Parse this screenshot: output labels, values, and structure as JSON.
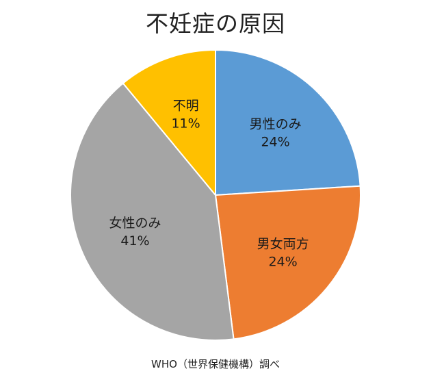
{
  "chart_data": {
    "type": "pie",
    "title": "不妊症の原因",
    "source": "WHO（世界保健機構）調べ",
    "slices": [
      {
        "label": "男性のみ",
        "value": 24,
        "value_label": "24%",
        "color": "#5B9BD5"
      },
      {
        "label": "男女両方",
        "value": 24,
        "value_label": "24%",
        "color": "#ED7D31"
      },
      {
        "label": "女性のみ",
        "value": 41,
        "value_label": "41%",
        "color": "#A5A5A5"
      },
      {
        "label": "不明",
        "value": 11,
        "value_label": "11%",
        "color": "#FFC000"
      }
    ],
    "start_angle_deg": 0,
    "direction": "clockwise"
  }
}
